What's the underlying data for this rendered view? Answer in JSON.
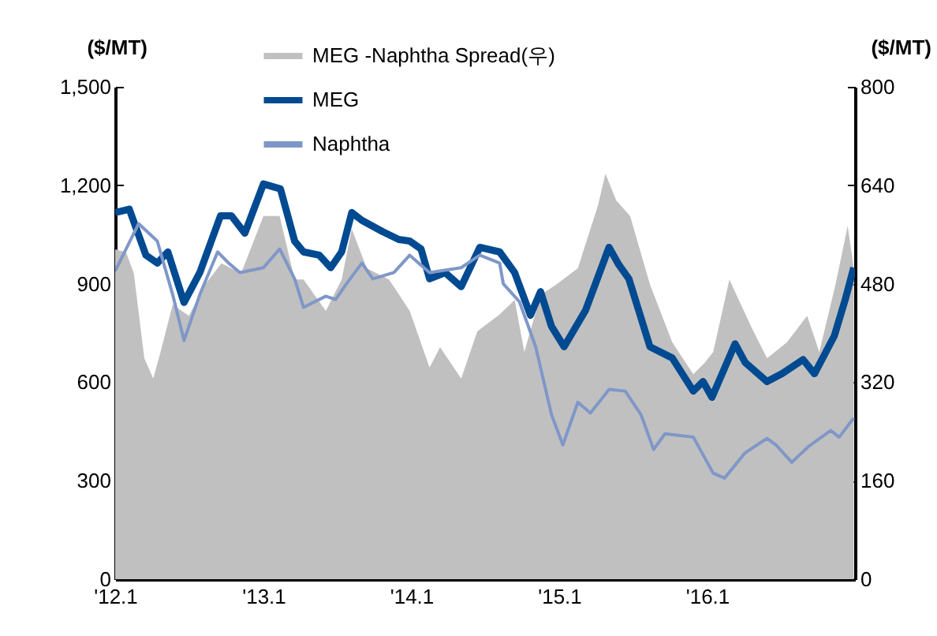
{
  "chart_data": {
    "type": "line",
    "ylabel": "($/MT)",
    "y2label": "($/MT)",
    "xlim": [
      "2012-01-01",
      "2016-12-31"
    ],
    "xticks": [
      {
        "value": "2012-01-01",
        "label": "'12.1"
      },
      {
        "value": "2013-01-01",
        "label": "'13.1"
      },
      {
        "value": "2014-01-01",
        "label": "'14.1"
      },
      {
        "value": "2015-01-01",
        "label": "'15.1"
      },
      {
        "value": "2016-01-01",
        "label": "'16.1"
      }
    ],
    "ylim": [
      0,
      1500
    ],
    "yticks": [
      0,
      300,
      600,
      900,
      {
        "value": 1200,
        "label": "1,200"
      },
      {
        "value": 1500,
        "label": "1,500"
      }
    ],
    "y2lim": [
      0,
      800
    ],
    "y2ticks": [
      0,
      160,
      320,
      480,
      640,
      800
    ],
    "grid": false,
    "legend": "top",
    "series": [
      {
        "name": "MEG -Naphtha Spread(우)",
        "type": "area",
        "axis": "y2",
        "color": "#c0c0c0",
        "x": [
          "2012-01-01",
          "2012-01-28",
          "2012-02-16",
          "2012-03-13",
          "2012-04-04",
          "2012-04-22",
          "2012-05-22",
          "2012-07-01",
          "2012-08-10",
          "2012-09-19",
          "2012-11-07",
          "2013-01-01",
          "2013-02-10",
          "2013-03-19",
          "2013-04-10",
          "2013-06-04",
          "2013-07-13",
          "2013-08-07",
          "2013-09-13",
          "2013-11-07",
          "2013-12-28",
          "2014-02-15",
          "2014-03-13",
          "2014-05-04",
          "2014-06-13",
          "2014-08-07",
          "2014-09-13",
          "2014-10-07",
          "2014-11-16",
          "2014-12-25",
          "2015-02-16",
          "2015-04-07",
          "2015-04-25",
          "2015-05-22",
          "2015-06-25",
          "2015-08-13",
          "2015-10-07",
          "2015-11-28",
          "2015-12-25",
          "2016-01-16",
          "2016-02-25",
          "2016-04-19",
          "2016-05-28",
          "2016-07-16",
          "2016-09-04",
          "2016-10-04",
          "2016-11-13",
          "2016-12-13",
          "2016-12-28"
        ],
        "values": [
          536,
          531,
          497,
          359,
          326,
          369,
          446,
          428,
          479,
          513,
          497,
          590,
          590,
          487,
          487,
          436,
          487,
          569,
          505,
          487,
          436,
          344,
          377,
          326,
          403,
          430,
          454,
          369,
          462,
          479,
          505,
          608,
          659,
          615,
          590,
          479,
          385,
          333,
          351,
          369,
          487,
          410,
          359,
          385,
          428,
          369,
          479,
          574,
          505
        ]
      },
      {
        "name": "MEG",
        "color": "#004a91",
        "x": [
          "2012-01-01",
          "2012-02-05",
          "2012-03-17",
          "2012-04-14",
          "2012-05-10",
          "2012-06-19",
          "2012-07-28",
          "2012-09-17",
          "2012-10-14",
          "2012-11-16",
          "2013-01-01",
          "2013-02-12",
          "2013-03-19",
          "2013-04-10",
          "2013-05-19",
          "2013-06-16",
          "2013-07-13",
          "2013-08-07",
          "2013-09-01",
          "2013-10-22",
          "2013-12-01",
          "2013-12-28",
          "2014-01-25",
          "2014-02-15",
          "2014-03-25",
          "2014-05-04",
          "2014-06-19",
          "2014-08-07",
          "2014-09-13",
          "2014-10-22",
          "2014-11-16",
          "2014-12-13",
          "2015-01-13",
          "2015-03-07",
          "2015-05-04",
          "2015-05-28",
          "2015-06-22",
          "2015-08-13",
          "2015-10-07",
          "2015-11-28",
          "2015-12-22",
          "2016-01-13",
          "2016-03-10",
          "2016-04-04",
          "2016-05-28",
          "2016-07-04",
          "2016-08-25",
          "2016-09-22",
          "2016-11-10",
          "2016-12-07",
          "2016-12-28"
        ],
        "values": [
          1117,
          1127,
          987,
          963,
          997,
          843,
          934,
          1107,
          1107,
          1054,
          1204,
          1189,
          1030,
          997,
          987,
          949,
          997,
          1117,
          1093,
          1059,
          1035,
          1030,
          1006,
          915,
          934,
          891,
          1011,
          997,
          934,
          804,
          876,
          770,
          708,
          819,
          1011,
          958,
          915,
          708,
          674,
          573,
          602,
          554,
          717,
          660,
          602,
          626,
          669,
          626,
          741,
          852,
          949
        ]
      },
      {
        "name": "Naphtha",
        "color": "#7f97c8",
        "x": [
          "2012-01-01",
          "2012-02-28",
          "2012-04-14",
          "2012-05-22",
          "2012-06-19",
          "2012-07-28",
          "2012-09-10",
          "2012-10-07",
          "2012-11-04",
          "2013-01-01",
          "2013-02-10",
          "2013-03-19",
          "2013-04-10",
          "2013-06-04",
          "2013-06-28",
          "2013-07-25",
          "2013-09-01",
          "2013-09-28",
          "2013-11-19",
          "2013-12-28",
          "2014-02-15",
          "2014-05-04",
          "2014-06-19",
          "2014-08-07",
          "2014-08-16",
          "2014-09-25",
          "2014-11-04",
          "2014-12-13",
          "2015-01-10",
          "2015-02-16",
          "2015-03-19",
          "2015-05-04",
          "2015-06-13",
          "2015-07-22",
          "2015-08-22",
          "2015-09-19",
          "2015-11-28",
          "2016-01-16",
          "2016-02-13",
          "2016-04-04",
          "2016-05-28",
          "2016-06-19",
          "2016-07-28",
          "2016-09-07",
          "2016-11-01",
          "2016-11-22",
          "2016-12-28"
        ],
        "values": [
          939,
          1083,
          1030,
          867,
          727,
          867,
          997,
          963,
          934,
          949,
          1006,
          915,
          828,
          862,
          852,
          900,
          963,
          915,
          934,
          987,
          934,
          949,
          987,
          963,
          900,
          845,
          708,
          501,
          409,
          539,
          506,
          578,
          573,
          501,
          395,
          443,
          433,
          323,
          308,
          385,
          429,
          409,
          356,
          404,
          453,
          433,
          491
        ]
      }
    ]
  }
}
